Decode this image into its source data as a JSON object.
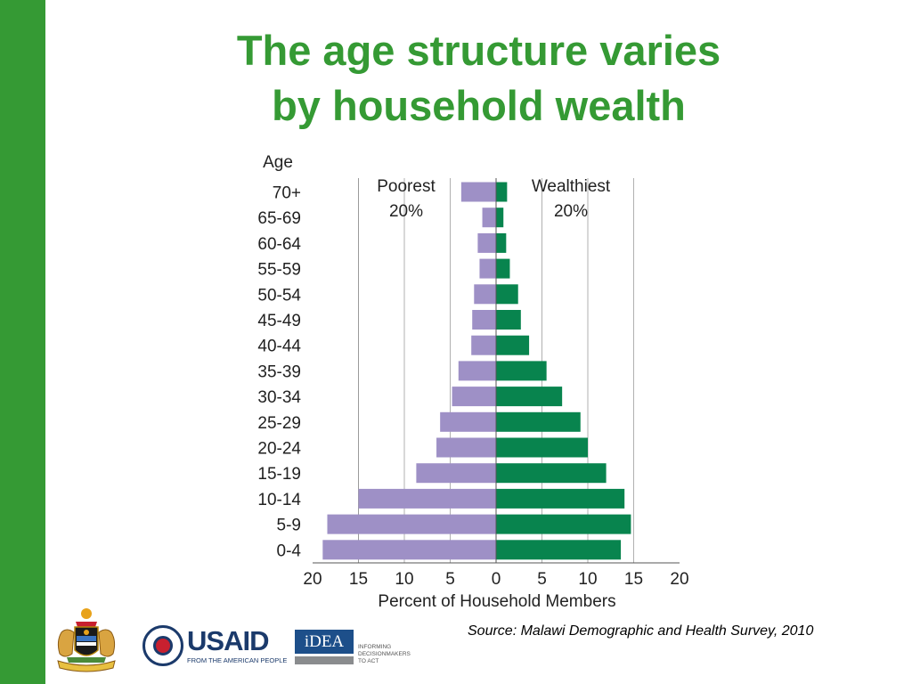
{
  "slide": {
    "title_line1": "The age structure varies",
    "title_line2": "by household wealth",
    "source": "Source: Malawi Demographic and Health Survey, 2010",
    "colors": {
      "accent": "#359a34",
      "poorest": "#9e90c6",
      "wealthiest": "#08844e"
    }
  },
  "logos": {
    "usaid_wordmark": "USAID",
    "usaid_tagline": "FROM THE AMERICAN PEOPLE",
    "idea_wordmark": "iDEA",
    "idea_tagline": [
      "INFORMING",
      "DECISIONMAKERS",
      "TO ACT"
    ],
    "coat_of_arms": "malawi-coat-of-arms"
  },
  "chart_data": {
    "type": "bar",
    "orientation": "population-pyramid",
    "ylabel": "Age",
    "xlabel": "Percent of Household Members",
    "categories": [
      "70+",
      "65-69",
      "60-64",
      "55-59",
      "50-54",
      "45-49",
      "40-44",
      "35-39",
      "30-34",
      "25-29",
      "20-24",
      "15-19",
      "10-14",
      "5-9",
      "0-4"
    ],
    "series": [
      {
        "name": "Poorest\n20%",
        "side": "left",
        "values": [
          3.8,
          1.5,
          2.0,
          1.8,
          2.4,
          2.6,
          2.7,
          4.1,
          4.8,
          6.1,
          6.5,
          8.7,
          15.0,
          18.4,
          18.9
        ]
      },
      {
        "name": "Wealthiest\n20%",
        "side": "right",
        "values": [
          1.2,
          0.8,
          1.1,
          1.5,
          2.4,
          2.7,
          3.6,
          5.5,
          7.2,
          9.2,
          10.0,
          12.0,
          14.0,
          14.7,
          13.6
        ]
      }
    ],
    "xticks": [
      "20",
      "15",
      "10",
      "5",
      "0",
      "5",
      "10",
      "15",
      "20"
    ],
    "xlim": [
      -20,
      20
    ],
    "grid": true,
    "legend": "series names printed at top of each side"
  }
}
